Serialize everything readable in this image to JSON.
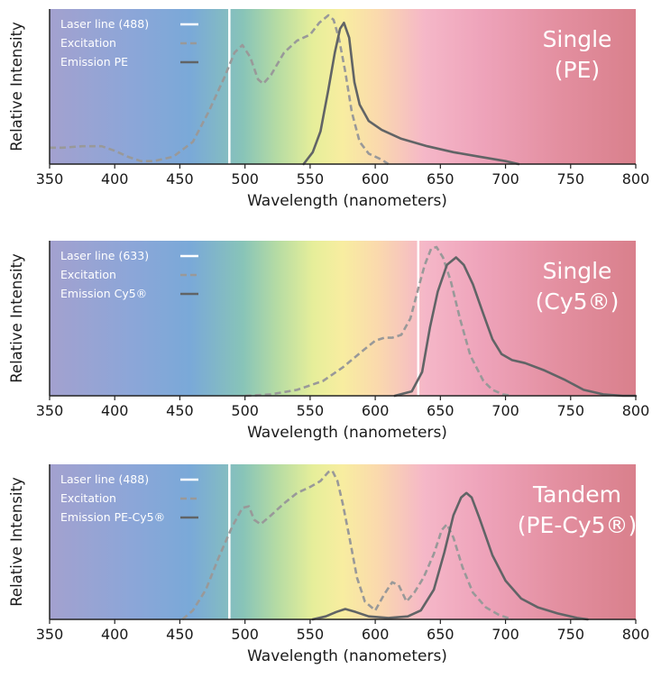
{
  "chart_data": [
    {
      "type": "line",
      "title": [
        "Single",
        "(PE)"
      ],
      "xlabel": "Wavelength (nanometers)",
      "ylabel": "Relative Intensity",
      "xlim": [
        350,
        800
      ],
      "ylim": [
        0,
        1
      ],
      "xticks": [
        350,
        400,
        450,
        500,
        550,
        600,
        650,
        700,
        750,
        800
      ],
      "grid": false,
      "legend_position": "top-left",
      "laser_line": {
        "name": "Laser line (488)",
        "x": 488,
        "color": "#ffffff"
      },
      "series": [
        {
          "name": "Excitation",
          "style": "dashed",
          "color": "#999999",
          "points": [
            [
              350,
              0.11
            ],
            [
              360,
              0.11
            ],
            [
              375,
              0.12
            ],
            [
              390,
              0.12
            ],
            [
              400,
              0.09
            ],
            [
              410,
              0.05
            ],
            [
              420,
              0.02
            ],
            [
              430,
              0.02
            ],
            [
              445,
              0.05
            ],
            [
              460,
              0.15
            ],
            [
              472,
              0.35
            ],
            [
              484,
              0.58
            ],
            [
              492,
              0.75
            ],
            [
              498,
              0.8
            ],
            [
              504,
              0.72
            ],
            [
              510,
              0.57
            ],
            [
              514,
              0.54
            ],
            [
              520,
              0.6
            ],
            [
              530,
              0.75
            ],
            [
              540,
              0.83
            ],
            [
              550,
              0.87
            ],
            [
              557,
              0.95
            ],
            [
              564,
              1.0
            ],
            [
              568,
              0.97
            ],
            [
              572,
              0.85
            ],
            [
              577,
              0.62
            ],
            [
              582,
              0.35
            ],
            [
              588,
              0.15
            ],
            [
              595,
              0.07
            ],
            [
              605,
              0.03
            ],
            [
              610,
              0.0
            ]
          ]
        },
        {
          "name": "Emission PE",
          "style": "solid",
          "color": "#616466",
          "points": [
            [
              545,
              0.0
            ],
            [
              552,
              0.08
            ],
            [
              558,
              0.22
            ],
            [
              564,
              0.5
            ],
            [
              569,
              0.75
            ],
            [
              573,
              0.91
            ],
            [
              576,
              0.95
            ],
            [
              580,
              0.85
            ],
            [
              584,
              0.55
            ],
            [
              588,
              0.4
            ],
            [
              595,
              0.29
            ],
            [
              605,
              0.23
            ],
            [
              620,
              0.17
            ],
            [
              640,
              0.12
            ],
            [
              660,
              0.08
            ],
            [
              680,
              0.05
            ],
            [
              700,
              0.02
            ],
            [
              710,
              0.0
            ]
          ]
        }
      ]
    },
    {
      "type": "line",
      "title": [
        "Single",
        "(Cy5®)"
      ],
      "xlabel": "Wavelength (nanometers)",
      "ylabel": "Relative Intensity",
      "xlim": [
        350,
        800
      ],
      "ylim": [
        0,
        1
      ],
      "xticks": [
        350,
        400,
        450,
        500,
        550,
        600,
        650,
        700,
        750,
        800
      ],
      "grid": false,
      "legend_position": "top-left",
      "laser_line": {
        "name": "Laser line (633)",
        "x": 633,
        "color": "#ffffff"
      },
      "series": [
        {
          "name": "Excitation",
          "style": "dashed",
          "color": "#999999",
          "points": [
            [
              500,
              0.0
            ],
            [
              520,
              0.01
            ],
            [
              540,
              0.04
            ],
            [
              560,
              0.1
            ],
            [
              575,
              0.19
            ],
            [
              590,
              0.3
            ],
            [
              600,
              0.37
            ],
            [
              607,
              0.39
            ],
            [
              613,
              0.39
            ],
            [
              620,
              0.41
            ],
            [
              627,
              0.52
            ],
            [
              633,
              0.72
            ],
            [
              638,
              0.88
            ],
            [
              643,
              0.99
            ],
            [
              647,
              1.0
            ],
            [
              652,
              0.93
            ],
            [
              658,
              0.77
            ],
            [
              665,
              0.52
            ],
            [
              673,
              0.27
            ],
            [
              683,
              0.1
            ],
            [
              690,
              0.04
            ],
            [
              698,
              0.01
            ],
            [
              705,
              0.0
            ]
          ]
        },
        {
          "name": "Emission Cy5®",
          "style": "solid",
          "color": "#616466",
          "points": [
            [
              615,
              0.0
            ],
            [
              628,
              0.03
            ],
            [
              636,
              0.16
            ],
            [
              642,
              0.46
            ],
            [
              648,
              0.7
            ],
            [
              655,
              0.88
            ],
            [
              662,
              0.93
            ],
            [
              668,
              0.88
            ],
            [
              675,
              0.75
            ],
            [
              683,
              0.55
            ],
            [
              690,
              0.38
            ],
            [
              697,
              0.28
            ],
            [
              705,
              0.24
            ],
            [
              715,
              0.22
            ],
            [
              730,
              0.17
            ],
            [
              745,
              0.11
            ],
            [
              760,
              0.04
            ],
            [
              775,
              0.01
            ],
            [
              790,
              0.0
            ],
            [
              800,
              0.0
            ]
          ]
        }
      ]
    },
    {
      "type": "line",
      "title": [
        "Tandem",
        "(PE-Cy5®)"
      ],
      "xlabel": "Wavelength (nanometers)",
      "ylabel": "Relative Intensity",
      "xlim": [
        350,
        800
      ],
      "ylim": [
        0,
        1
      ],
      "xticks": [
        350,
        400,
        450,
        500,
        550,
        600,
        650,
        700,
        750,
        800
      ],
      "grid": false,
      "legend_position": "top-left",
      "laser_line": {
        "name": "Laser line (488)",
        "x": 488,
        "color": "#ffffff"
      },
      "series": [
        {
          "name": "Excitation",
          "style": "dashed",
          "color": "#999999",
          "points": [
            [
              452,
              0.0
            ],
            [
              460,
              0.06
            ],
            [
              470,
              0.2
            ],
            [
              480,
              0.42
            ],
            [
              490,
              0.62
            ],
            [
              498,
              0.75
            ],
            [
              503,
              0.76
            ],
            [
              507,
              0.67
            ],
            [
              512,
              0.64
            ],
            [
              520,
              0.7
            ],
            [
              530,
              0.78
            ],
            [
              540,
              0.85
            ],
            [
              550,
              0.89
            ],
            [
              558,
              0.93
            ],
            [
              564,
              0.99
            ],
            [
              567,
              1.0
            ],
            [
              571,
              0.93
            ],
            [
              575,
              0.78
            ],
            [
              580,
              0.56
            ],
            [
              586,
              0.28
            ],
            [
              592,
              0.12
            ],
            [
              600,
              0.06
            ],
            [
              607,
              0.17
            ],
            [
              613,
              0.25
            ],
            [
              618,
              0.23
            ],
            [
              624,
              0.12
            ],
            [
              630,
              0.18
            ],
            [
              637,
              0.28
            ],
            [
              645,
              0.44
            ],
            [
              651,
              0.6
            ],
            [
              655,
              0.64
            ],
            [
              660,
              0.55
            ],
            [
              667,
              0.35
            ],
            [
              675,
              0.18
            ],
            [
              685,
              0.08
            ],
            [
              695,
              0.03
            ],
            [
              705,
              0.0
            ]
          ]
        },
        {
          "name": "Emission PE-Cy5®",
          "style": "solid",
          "color": "#616466",
          "points": [
            [
              552,
              0.0
            ],
            [
              562,
              0.02
            ],
            [
              570,
              0.05
            ],
            [
              577,
              0.07
            ],
            [
              585,
              0.05
            ],
            [
              595,
              0.02
            ],
            [
              610,
              0.01
            ],
            [
              625,
              0.02
            ],
            [
              635,
              0.06
            ],
            [
              645,
              0.2
            ],
            [
              653,
              0.45
            ],
            [
              660,
              0.7
            ],
            [
              666,
              0.82
            ],
            [
              670,
              0.85
            ],
            [
              674,
              0.82
            ],
            [
              680,
              0.68
            ],
            [
              690,
              0.43
            ],
            [
              700,
              0.26
            ],
            [
              712,
              0.14
            ],
            [
              725,
              0.08
            ],
            [
              740,
              0.04
            ],
            [
              755,
              0.01
            ],
            [
              763,
              0.0
            ]
          ]
        }
      ]
    }
  ]
}
